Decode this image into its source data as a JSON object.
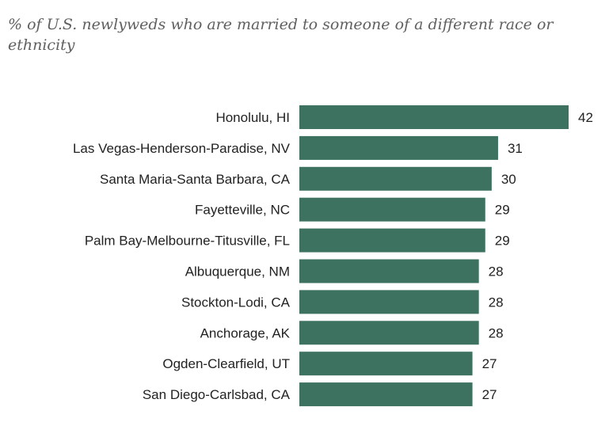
{
  "chart_data": {
    "type": "bar",
    "orientation": "horizontal",
    "title": "",
    "subtitle": "% of U.S. newlyweds who are married to someone of a different race or ethnicity",
    "xlabel": "",
    "ylabel": "",
    "xlim": [
      0,
      42
    ],
    "grid": false,
    "legend": "none",
    "bar_color": "#3d7260",
    "categories": [
      "Honolulu, HI",
      "Las Vegas-Henderson-Paradise, NV",
      "Santa Maria-Santa Barbara, CA",
      "Fayetteville, NC",
      "Palm Bay-Melbourne-Titusville, FL",
      "Albuquerque, NM",
      "Stockton-Lodi, CA",
      "Anchorage, AK",
      "Ogden-Clearfield, UT",
      "San Diego-Carlsbad, CA"
    ],
    "values": [
      42,
      31,
      30,
      29,
      29,
      28,
      28,
      28,
      27,
      27
    ]
  }
}
